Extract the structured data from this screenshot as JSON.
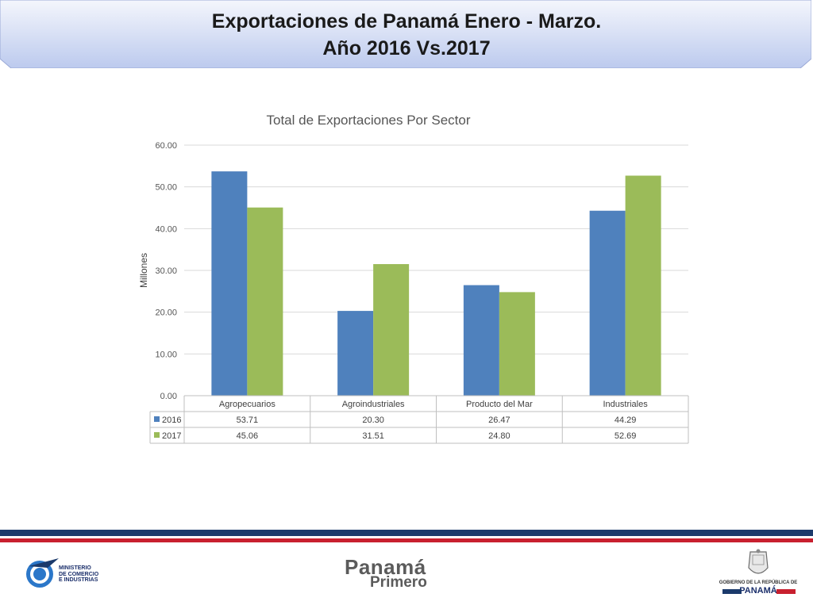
{
  "slide": {
    "title_line1": "Exportaciones de Panamá Enero - Marzo.",
    "title_line2": "Año 2016 Vs.2017"
  },
  "chart_data": {
    "type": "bar",
    "title": "Total de Exportaciones Por Sector",
    "ylabel": "Millones",
    "xlabel": "",
    "ylim": [
      0,
      60
    ],
    "yticks": [
      "0.00",
      "10.00",
      "20.00",
      "30.00",
      "40.00",
      "50.00",
      "60.00"
    ],
    "grid": true,
    "legend": "data-table",
    "categories": [
      "Agropecuarios",
      "Agroindustriales",
      "Producto del Mar",
      "Industriales"
    ],
    "series": [
      {
        "name": "2016",
        "color": "#4F81BD",
        "values": [
          53.71,
          20.3,
          26.47,
          44.29
        ],
        "labels": [
          "53.71",
          "20.30",
          "26.47",
          "44.29"
        ]
      },
      {
        "name": "2017",
        "color": "#9BBB59",
        "values": [
          45.06,
          31.51,
          24.8,
          52.69
        ],
        "labels": [
          "45.06",
          "31.51",
          "24.80",
          "52.69"
        ]
      }
    ]
  },
  "footer": {
    "mici_lines": [
      "MINISTERIO",
      "DE COMERCIO",
      "E INDUSTRIAS"
    ],
    "brand_word1": "Panamá",
    "brand_word2": "Primero",
    "gov_line1": "GOBIERNO DE LA REPÚBLICA DE",
    "gov_line2": "PANAMÁ",
    "colors": {
      "navy": "#1b3a6b",
      "red": "#c8202f"
    }
  }
}
